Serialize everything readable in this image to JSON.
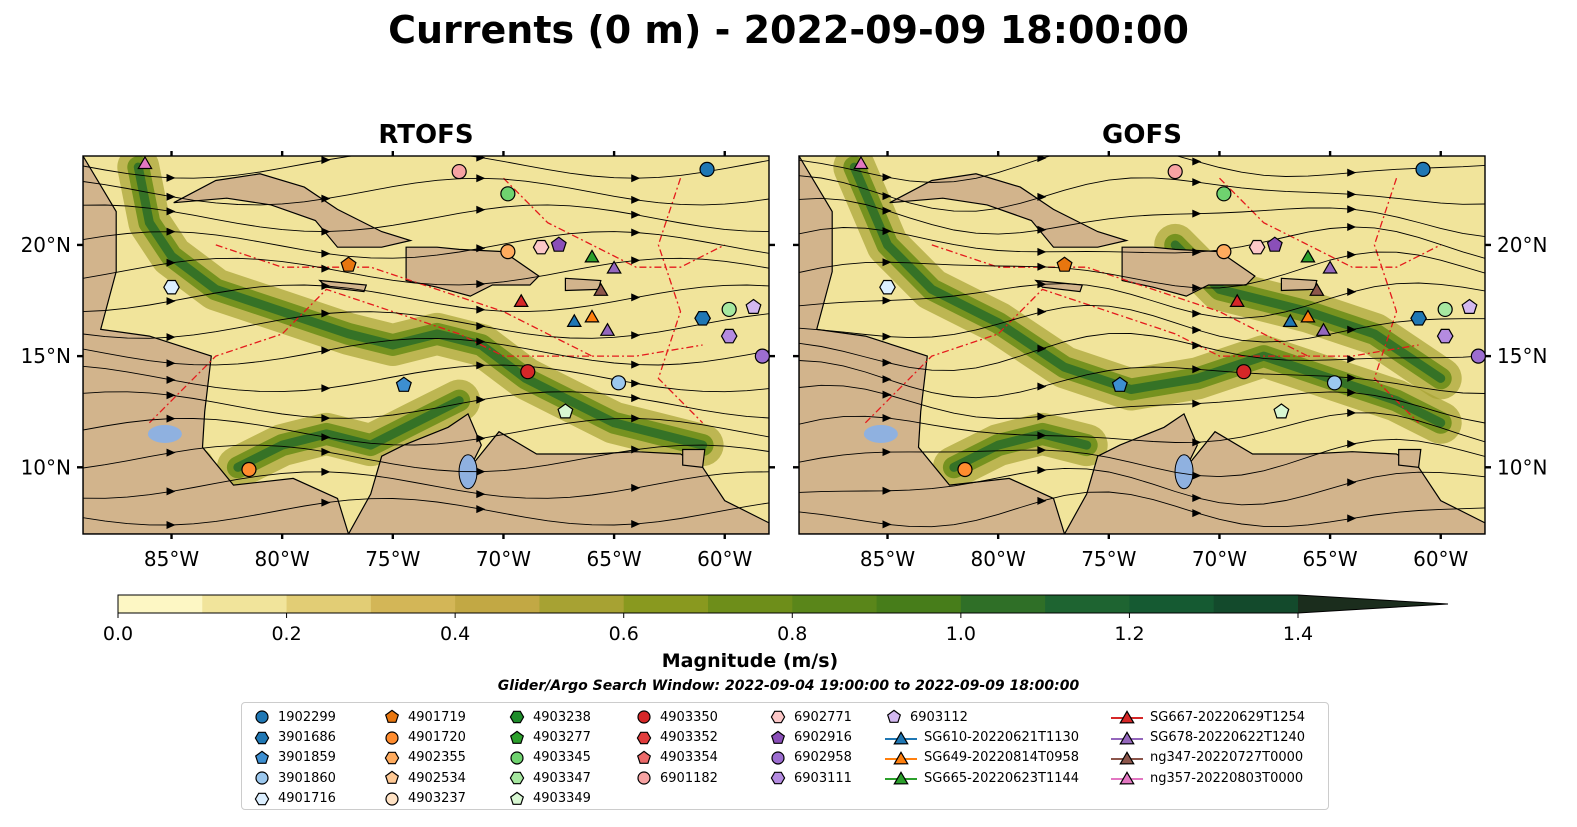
{
  "title": "Currents (0 m) - 2022-09-09 18:00:00",
  "maps": [
    {
      "title": "RTOFS",
      "id": "rtofs"
    },
    {
      "title": "GOFS",
      "id": "gofs"
    }
  ],
  "axes": {
    "lon_ticks": [
      "85°W",
      "80°W",
      "75°W",
      "70°W",
      "65°W",
      "60°W"
    ],
    "lat_ticks": [
      "20°N",
      "15°N",
      "10°N"
    ],
    "lon_range": [
      -89,
      -58
    ],
    "lat_range": [
      7,
      24
    ]
  },
  "colorbar": {
    "label": "Magnitude (m/s)",
    "ticks": [
      "0.0",
      "0.2",
      "0.4",
      "0.6",
      "0.8",
      "1.0",
      "1.2",
      "1.4"
    ],
    "range": [
      0,
      1.5
    ],
    "extend": "max",
    "colors": [
      "#fdf7c4",
      "#f1e49b",
      "#e2cd75",
      "#d3b657",
      "#c2a844",
      "#a7a233",
      "#89991f",
      "#6e8e1a",
      "#5a861a",
      "#477d1a",
      "#2f6f27",
      "#1e6431",
      "#155a32",
      "#134a2c",
      "#153b25",
      "#1b2d1d"
    ]
  },
  "search_window": "Glider/Argo Search Window: 2022-09-04 19:00:00 to 2022-09-09 18:00:00",
  "colors": {
    "land": "#d2b48c",
    "lake": "#8fb1e0",
    "river": "#9ab4cc",
    "eez": "#e41a1c"
  },
  "legend": [
    [
      {
        "label": "1902299",
        "marker": "circle",
        "color": "#1f77b4"
      },
      {
        "label": "3901686",
        "marker": "hexagon",
        "color": "#1f77b4"
      },
      {
        "label": "3901859",
        "marker": "pentagon",
        "color": "#3d8fd1"
      },
      {
        "label": "3901860",
        "marker": "circle",
        "color": "#9cc8ee"
      },
      {
        "label": "4901716",
        "marker": "hexagon",
        "color": "#dcefff"
      }
    ],
    [
      {
        "label": "4901719",
        "marker": "pentagon",
        "color": "#e8760f"
      },
      {
        "label": "4901720",
        "marker": "circle",
        "color": "#ff8c2e"
      },
      {
        "label": "4902355",
        "marker": "hexagon",
        "color": "#ffab5e"
      },
      {
        "label": "4902534",
        "marker": "pentagon",
        "color": "#ffc995"
      },
      {
        "label": "4903237",
        "marker": "circle",
        "color": "#ffe2c4"
      }
    ],
    [
      {
        "label": "4903238",
        "marker": "hexagon",
        "color": "#1e8c2a"
      },
      {
        "label": "4903277",
        "marker": "pentagon",
        "color": "#2ca02c"
      },
      {
        "label": "4903345",
        "marker": "circle",
        "color": "#6fd36f"
      },
      {
        "label": "4903347",
        "marker": "hexagon",
        "color": "#a6e8a0"
      },
      {
        "label": "4903349",
        "marker": "pentagon",
        "color": "#d8f7d2"
      }
    ],
    [
      {
        "label": "4903350",
        "marker": "circle",
        "color": "#d62728"
      },
      {
        "label": "4903352",
        "marker": "hexagon",
        "color": "#e03c3c"
      },
      {
        "label": "4903354",
        "marker": "pentagon",
        "color": "#ec6a6a"
      },
      {
        "label": "6901182",
        "marker": "circle",
        "color": "#f7a3a3"
      }
    ],
    [
      {
        "label": "6902771",
        "marker": "hexagon",
        "color": "#fcc8c8"
      },
      {
        "label": "6902916",
        "marker": "pentagon",
        "color": "#8a4fb8"
      },
      {
        "label": "6902958",
        "marker": "circle",
        "color": "#9c6dd0"
      },
      {
        "label": "6903111",
        "marker": "hexagon",
        "color": "#b48be0"
      }
    ],
    [
      {
        "label": "6903112",
        "marker": "pentagon",
        "color": "#d3b8f0"
      },
      {
        "label": "SG610-20220621T1130",
        "marker": "triangle-line",
        "color": "#1f77b4"
      },
      {
        "label": "SG649-20220814T0958",
        "marker": "triangle-line",
        "color": "#ff7f0e"
      },
      {
        "label": "SG665-20220623T1144",
        "marker": "triangle-line",
        "color": "#2ca02c"
      }
    ],
    [
      {
        "label": "SG667-20220629T1254",
        "marker": "triangle-line",
        "color": "#d62728"
      },
      {
        "label": "SG678-20220622T1240",
        "marker": "triangle-line",
        "color": "#9467bd"
      },
      {
        "label": "ng347-20220727T0000",
        "marker": "triangle-line",
        "color": "#8c564b"
      },
      {
        "label": "ng357-20220803T0000",
        "marker": "triangle-line",
        "color": "#e377c2"
      }
    ]
  ]
}
